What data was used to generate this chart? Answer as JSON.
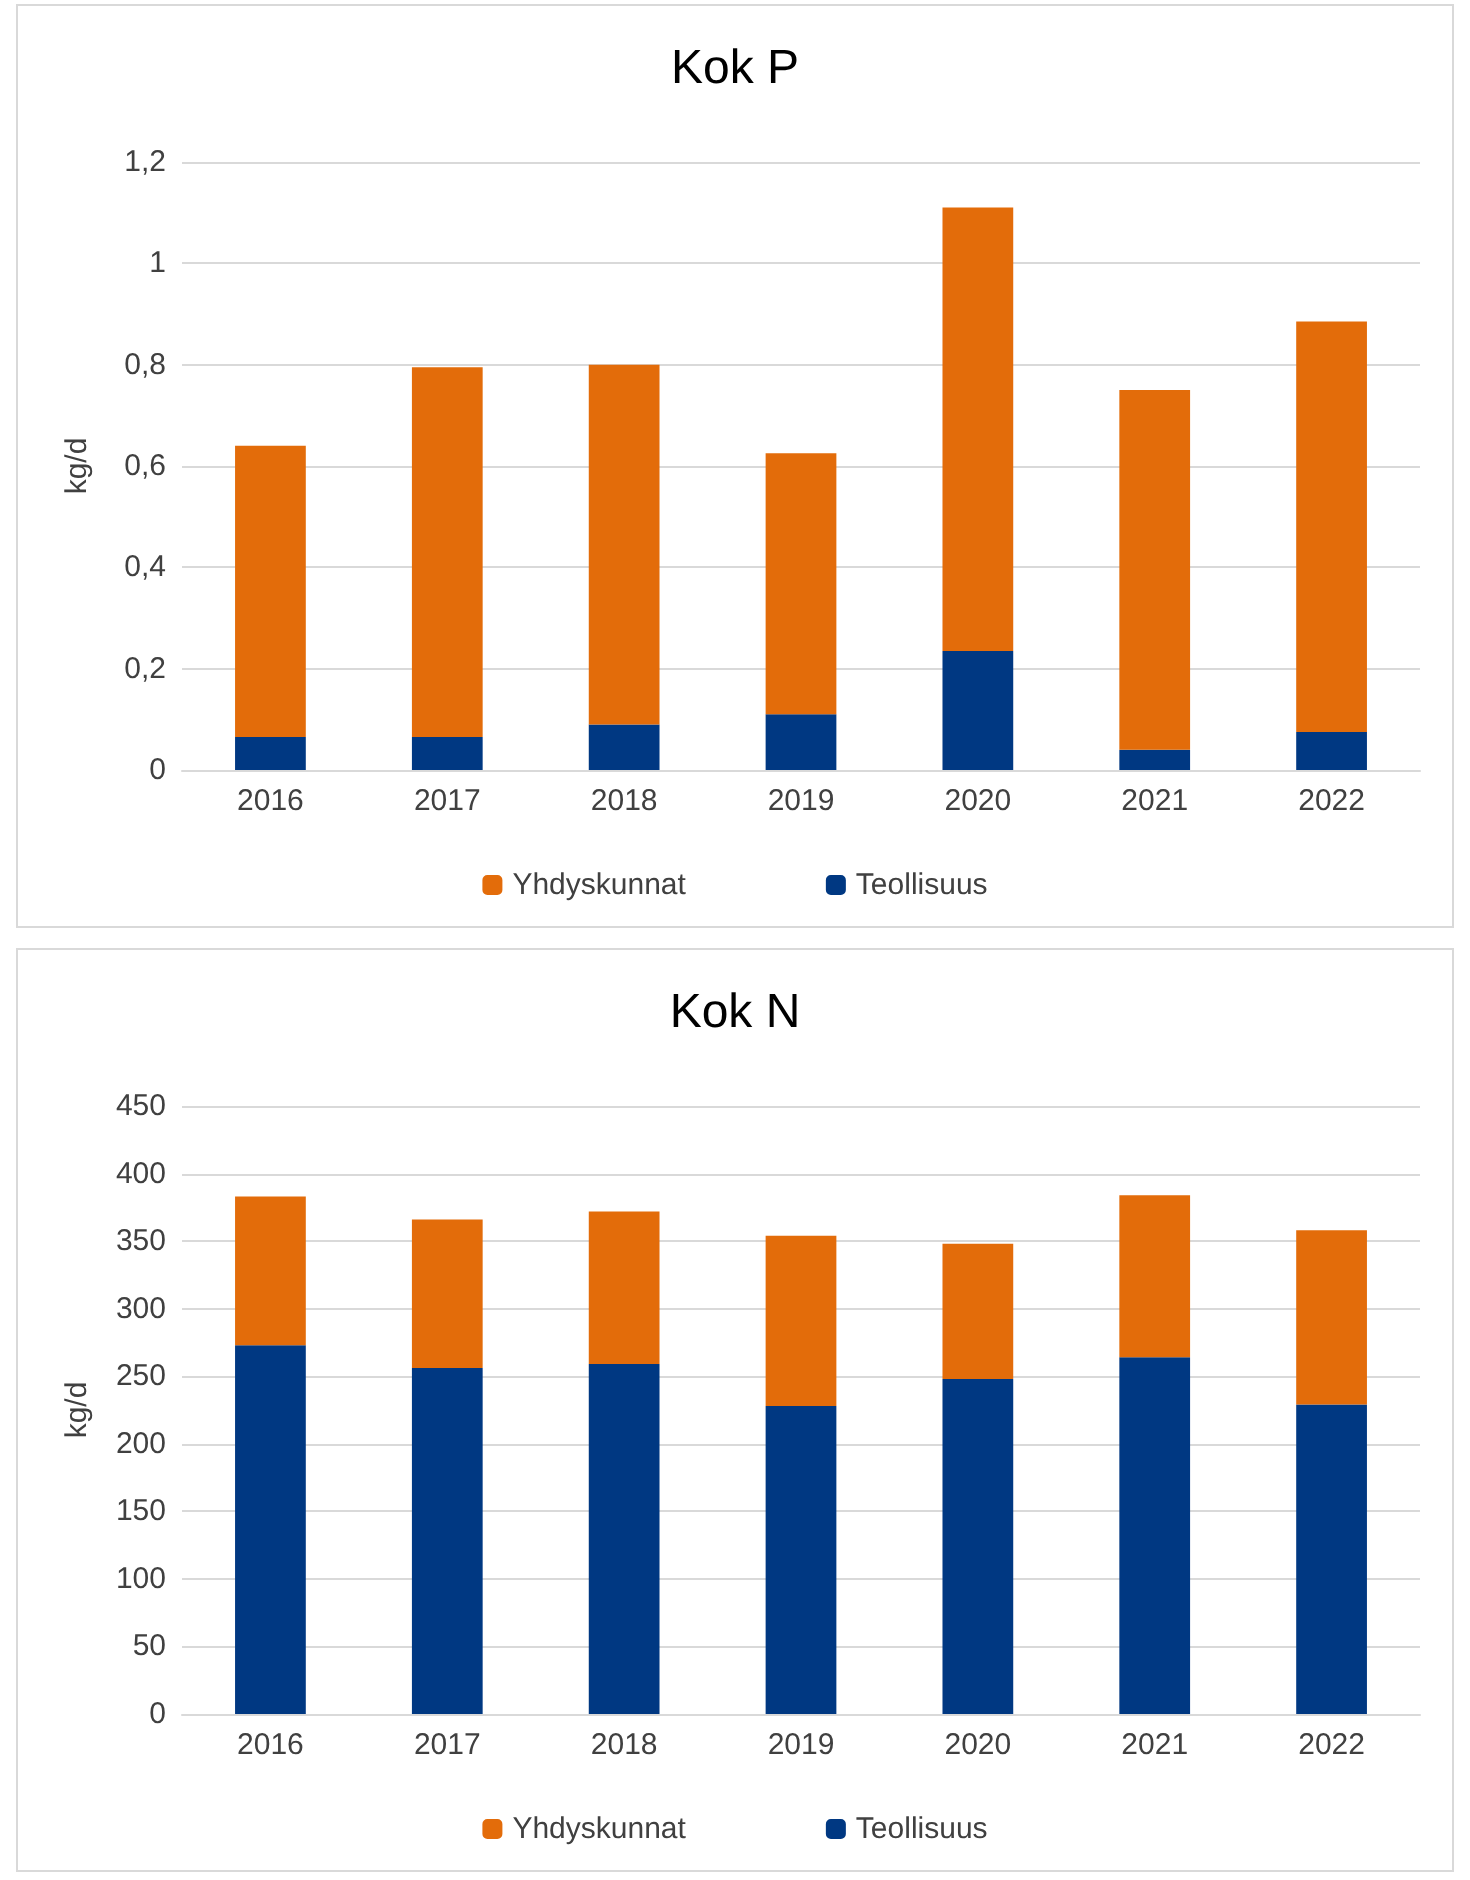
{
  "chart_data": [
    {
      "type": "bar",
      "title": "Kok P",
      "ylabel": "kg/d",
      "categories": [
        "2016",
        "2017",
        "2018",
        "2019",
        "2020",
        "2021",
        "2022"
      ],
      "stacked": true,
      "series": [
        {
          "name": "Teollisuus",
          "color": "#003882",
          "values": [
            0.065,
            0.065,
            0.09,
            0.11,
            0.235,
            0.04,
            0.075
          ]
        },
        {
          "name": "Yhdyskunnat",
          "color": "#e36c0a",
          "values": [
            0.575,
            0.73,
            0.71,
            0.515,
            0.875,
            0.71,
            0.81
          ]
        }
      ],
      "ylim": [
        0,
        1.2
      ],
      "yticks": [
        0,
        {
          "value": 0.2,
          "label": "0,2"
        },
        {
          "value": 0.4,
          "label": "0,4"
        },
        {
          "value": 0.6,
          "label": "0,6"
        },
        {
          "value": 0.8,
          "label": "0,8"
        },
        1,
        {
          "value": 1.2,
          "label": "1,2"
        }
      ],
      "grid": "y",
      "legend": "bottom"
    },
    {
      "type": "bar",
      "title": "Kok N",
      "ylabel": "kg/d",
      "categories": [
        "2016",
        "2017",
        "2018",
        "2019",
        "2020",
        "2021",
        "2022"
      ],
      "stacked": true,
      "series": [
        {
          "name": "Teollisuus",
          "color": "#003882",
          "values": [
            273,
            256,
            259,
            228,
            248,
            264,
            229
          ]
        },
        {
          "name": "Yhdyskunnat",
          "color": "#e36c0a",
          "values": [
            110,
            110,
            113,
            126,
            100,
            120,
            129
          ]
        }
      ],
      "ylim": [
        0,
        450
      ],
      "yticks": [
        0,
        50,
        100,
        150,
        200,
        250,
        300,
        350,
        400,
        450
      ],
      "grid": "y",
      "legend": "bottom"
    }
  ]
}
